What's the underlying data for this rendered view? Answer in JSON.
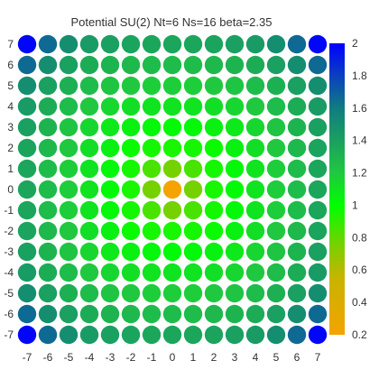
{
  "chart_data": {
    "type": "heatmap",
    "title": "Potential SU(2) Nt=6 Ns=16 beta=2.35",
    "xlabel": "",
    "ylabel": "",
    "x": [
      -7,
      -6,
      -5,
      -4,
      -3,
      -2,
      -1,
      0,
      1,
      2,
      3,
      4,
      5,
      6,
      7
    ],
    "y": [
      7,
      6,
      5,
      4,
      3,
      2,
      1,
      0,
      -1,
      -2,
      -3,
      -4,
      -5,
      -6,
      -7
    ],
    "x_tick_labels": [
      "-7",
      "-6",
      "-5",
      "-4",
      "-3",
      "-2",
      "-1",
      "0",
      "1",
      "2",
      "3",
      "4",
      "5",
      "6",
      "7"
    ],
    "y_tick_labels": [
      "7",
      "6",
      "5",
      "4",
      "3",
      "2",
      "1",
      "0",
      "-1",
      "-2",
      "-3",
      "-4",
      "-5",
      "-6",
      "-7"
    ],
    "xlim": [
      -7,
      7
    ],
    "ylim": [
      -7,
      7
    ],
    "marker": "circle",
    "grid": false,
    "values": [
      [
        1.98,
        1.66,
        1.5,
        1.43,
        1.4,
        1.38,
        1.37,
        1.37,
        1.37,
        1.38,
        1.4,
        1.43,
        1.5,
        1.66,
        1.98
      ],
      [
        1.66,
        1.5,
        1.4,
        1.34,
        1.3,
        1.28,
        1.26,
        1.26,
        1.26,
        1.28,
        1.3,
        1.34,
        1.4,
        1.5,
        1.66
      ],
      [
        1.5,
        1.4,
        1.32,
        1.26,
        1.22,
        1.2,
        1.18,
        1.18,
        1.18,
        1.2,
        1.22,
        1.26,
        1.32,
        1.4,
        1.5
      ],
      [
        1.43,
        1.34,
        1.26,
        1.2,
        1.15,
        1.12,
        1.1,
        1.1,
        1.1,
        1.12,
        1.15,
        1.2,
        1.26,
        1.34,
        1.43
      ],
      [
        1.4,
        1.3,
        1.22,
        1.15,
        1.08,
        1.05,
        1.03,
        1.02,
        1.03,
        1.05,
        1.08,
        1.15,
        1.22,
        1.3,
        1.4
      ],
      [
        1.38,
        1.28,
        1.2,
        1.12,
        1.05,
        0.98,
        0.96,
        0.95,
        0.96,
        0.98,
        1.05,
        1.12,
        1.2,
        1.28,
        1.38
      ],
      [
        1.37,
        1.26,
        1.18,
        1.1,
        1.03,
        0.96,
        0.85,
        0.76,
        0.85,
        0.96,
        1.03,
        1.1,
        1.18,
        1.26,
        1.37
      ],
      [
        1.37,
        1.26,
        1.18,
        1.1,
        1.02,
        0.95,
        0.76,
        0.2,
        0.76,
        0.95,
        1.02,
        1.1,
        1.18,
        1.26,
        1.37
      ],
      [
        1.37,
        1.26,
        1.18,
        1.1,
        1.03,
        0.96,
        0.85,
        0.76,
        0.85,
        0.96,
        1.03,
        1.1,
        1.18,
        1.26,
        1.37
      ],
      [
        1.38,
        1.28,
        1.2,
        1.12,
        1.05,
        0.98,
        0.96,
        0.95,
        0.96,
        0.98,
        1.05,
        1.12,
        1.2,
        1.28,
        1.38
      ],
      [
        1.4,
        1.3,
        1.22,
        1.15,
        1.08,
        1.05,
        1.03,
        1.02,
        1.03,
        1.05,
        1.08,
        1.15,
        1.22,
        1.3,
        1.4
      ],
      [
        1.43,
        1.34,
        1.26,
        1.2,
        1.15,
        1.12,
        1.1,
        1.1,
        1.1,
        1.12,
        1.15,
        1.2,
        1.26,
        1.34,
        1.43
      ],
      [
        1.5,
        1.4,
        1.32,
        1.26,
        1.22,
        1.2,
        1.18,
        1.18,
        1.18,
        1.2,
        1.22,
        1.26,
        1.32,
        1.4,
        1.5
      ],
      [
        1.66,
        1.5,
        1.4,
        1.34,
        1.3,
        1.28,
        1.26,
        1.26,
        1.26,
        1.28,
        1.3,
        1.34,
        1.4,
        1.5,
        1.66
      ],
      [
        1.98,
        1.66,
        1.5,
        1.43,
        1.4,
        1.38,
        1.37,
        1.37,
        1.37,
        1.38,
        1.4,
        1.43,
        1.5,
        1.66,
        1.98
      ]
    ],
    "colorbar": {
      "range": [
        0.2,
        2
      ],
      "tick_labels": [
        "2",
        "1.8",
        "1.6",
        "1.4",
        "1.2",
        "1",
        "0.8",
        "0.6",
        "0.4",
        "0.2"
      ],
      "tick_values": [
        2,
        1.8,
        1.6,
        1.4,
        1.2,
        1,
        0.8,
        0.6,
        0.4,
        0.2
      ],
      "colorscale": [
        {
          "value": 0.2,
          "color": "#f5a300"
        },
        {
          "value": 0.55,
          "color": "#c8b400"
        },
        {
          "value": 0.75,
          "color": "#7ad000"
        },
        {
          "value": 1.0,
          "color": "#00ff00"
        },
        {
          "value": 1.2,
          "color": "#20c840"
        },
        {
          "value": 1.4,
          "color": "#1aa060"
        },
        {
          "value": 1.6,
          "color": "#107c80"
        },
        {
          "value": 1.8,
          "color": "#0a40c0"
        },
        {
          "value": 2.0,
          "color": "#0000ff"
        }
      ]
    }
  }
}
